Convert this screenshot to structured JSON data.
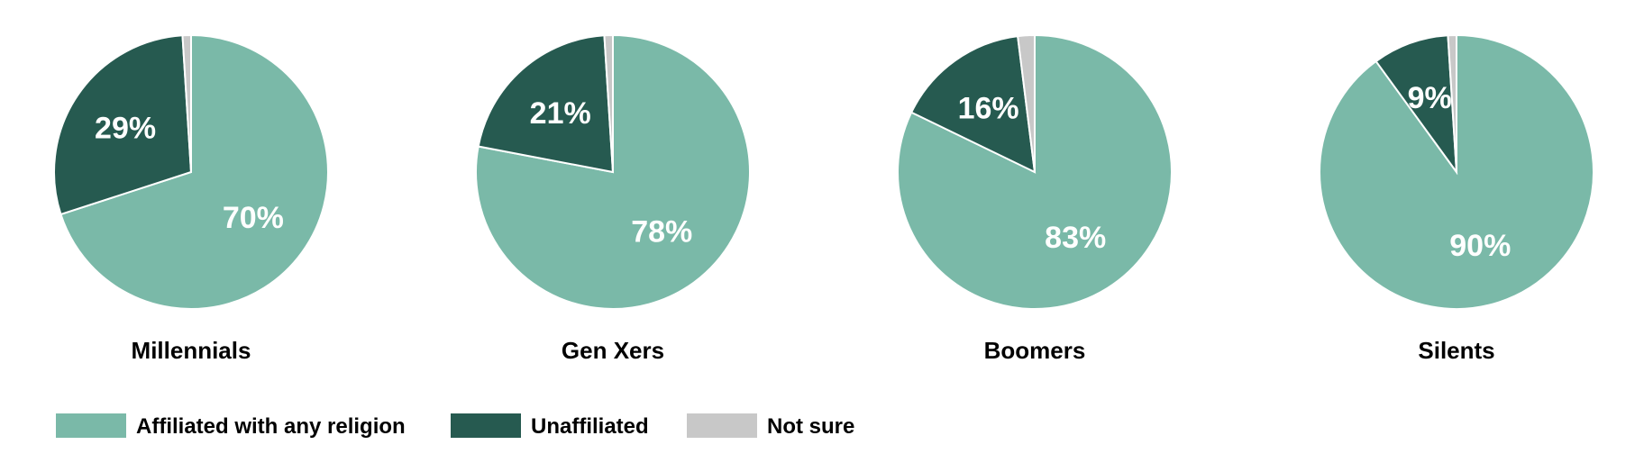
{
  "chart_data": {
    "type": "pie",
    "categories": [
      "Affiliated with any religion",
      "Unaffiliated",
      "Not sure"
    ],
    "colors": {
      "Affiliated with any religion": "#7ab9a8",
      "Unaffiliated": "#265a50",
      "Not sure": "#c8c8c8"
    },
    "pies": [
      {
        "title": "Millennials",
        "values": [
          70,
          29,
          1
        ],
        "labels": [
          "70%",
          "29%",
          ""
        ]
      },
      {
        "title": "Gen Xers",
        "values": [
          78,
          21,
          1
        ],
        "labels": [
          "78%",
          "21%",
          ""
        ]
      },
      {
        "title": "Boomers",
        "values": [
          83,
          16,
          2
        ],
        "labels": [
          "83%",
          "16%",
          ""
        ]
      },
      {
        "title": "Silents",
        "values": [
          90,
          9,
          1
        ],
        "labels": [
          "90%",
          "9%",
          ""
        ]
      }
    ],
    "legend": {
      "placement": "bottom-left",
      "items": [
        {
          "label": "Affiliated with any religion",
          "color": "#7ab9a8"
        },
        {
          "label": "Unaffiliated",
          "color": "#265a50"
        },
        {
          "label": "Not sure",
          "color": "#c8c8c8"
        }
      ]
    }
  }
}
